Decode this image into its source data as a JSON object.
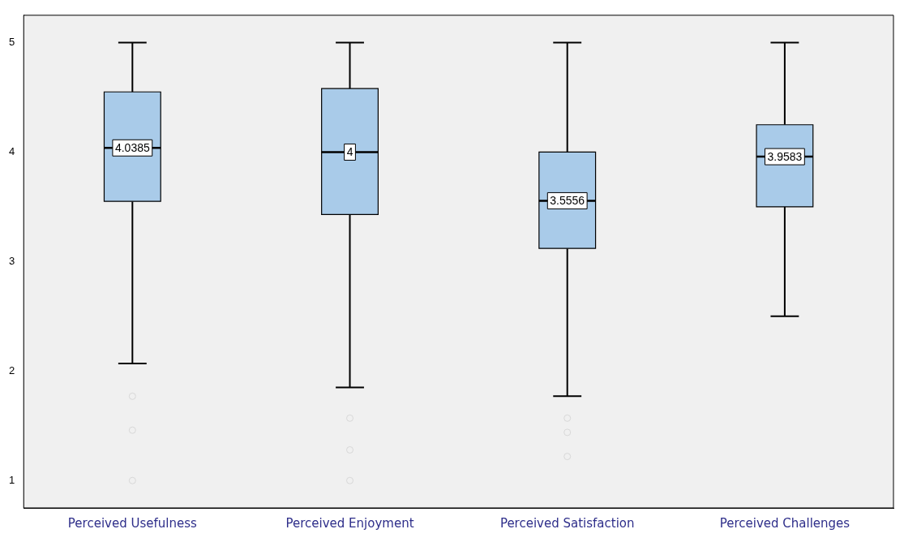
{
  "chart_data": {
    "type": "box",
    "categories": [
      "Perceived Usefulness",
      "Perceived Enjoyment",
      "Perceived Satisfaction",
      "Perceived Challenges"
    ],
    "color": "#a9cbe9",
    "boxes": [
      {
        "low": 2.07,
        "q1": 3.55,
        "median": 4.0385,
        "q3": 4.55,
        "high": 5,
        "outliers": [
          1.77,
          1.46,
          1.0
        ]
      },
      {
        "low": 1.85,
        "q1": 3.43,
        "median": 4,
        "q3": 4.58,
        "high": 5,
        "outliers": [
          1.57,
          1.28,
          1.0
        ]
      },
      {
        "low": 1.77,
        "q1": 3.12,
        "median": 3.5556,
        "q3": 4.0,
        "high": 5,
        "outliers": [
          1.57,
          1.44,
          1.22
        ]
      },
      {
        "low": 2.5,
        "q1": 3.5,
        "median": 3.9583,
        "q3": 4.25,
        "high": 5
      }
    ],
    "ylim": [
      0.75,
      5.25
    ],
    "yticks": [
      1,
      2,
      3,
      4,
      5
    ],
    "annotations": [
      {
        "text": "4.0385",
        "x": "Perceived Usefulness",
        "y": 4.0385
      },
      {
        "text": "4",
        "x": "Perceived Enjoyment",
        "y": 4
      },
      {
        "text": "3.5556",
        "x": "Perceived Satisfaction",
        "y": 3.5556
      },
      {
        "text": "3.9583",
        "x": "Perceived Challenges",
        "y": 3.9583
      }
    ]
  }
}
